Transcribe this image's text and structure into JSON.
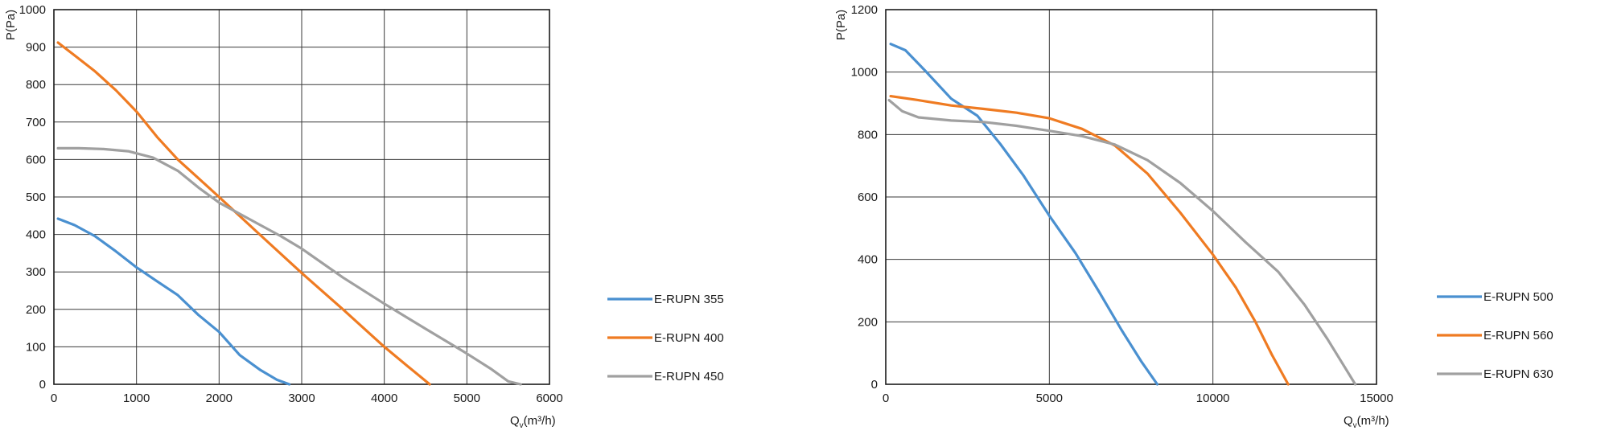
{
  "chart_data": [
    {
      "type": "line",
      "ylabel": "P(Pa)",
      "xlabel_main": "Q",
      "xlabel_sub": "v",
      "xlabel_unit": "(m³/h)",
      "xlim": [
        0,
        6000
      ],
      "ylim": [
        0,
        1000
      ],
      "xticks": [
        0,
        1000,
        2000,
        3000,
        4000,
        5000,
        6000
      ],
      "yticks": [
        0,
        100,
        200,
        300,
        400,
        500,
        600,
        700,
        800,
        900,
        1000
      ],
      "grid": true,
      "legend_position": "right",
      "series": [
        {
          "name": "E-RUPN 355",
          "color": "#4a90d0",
          "points": [
            [
              50,
              442
            ],
            [
              250,
              425
            ],
            [
              500,
              395
            ],
            [
              750,
              355
            ],
            [
              1000,
              312
            ],
            [
              1250,
              275
            ],
            [
              1500,
              238
            ],
            [
              1750,
              185
            ],
            [
              2000,
              140
            ],
            [
              2250,
              78
            ],
            [
              2500,
              38
            ],
            [
              2700,
              12
            ],
            [
              2850,
              0
            ]
          ]
        },
        {
          "name": "E-RUPN 400",
          "color": "#ef7b22",
          "points": [
            [
              50,
              912
            ],
            [
              250,
              878
            ],
            [
              500,
              835
            ],
            [
              750,
              785
            ],
            [
              1000,
              728
            ],
            [
              1250,
              660
            ],
            [
              1500,
              600
            ],
            [
              1750,
              550
            ],
            [
              2000,
              500
            ],
            [
              2500,
              398
            ],
            [
              3000,
              297
            ],
            [
              3500,
              200
            ],
            [
              4000,
              100
            ],
            [
              4300,
              45
            ],
            [
              4550,
              0
            ]
          ]
        },
        {
          "name": "E-RUPN 450",
          "color": "#a0a0a0",
          "points": [
            [
              50,
              630
            ],
            [
              300,
              630
            ],
            [
              600,
              628
            ],
            [
              900,
              622
            ],
            [
              1200,
              605
            ],
            [
              1500,
              570
            ],
            [
              1750,
              525
            ],
            [
              2000,
              485
            ],
            [
              2250,
              455
            ],
            [
              2500,
              425
            ],
            [
              2750,
              395
            ],
            [
              3000,
              362
            ],
            [
              3500,
              285
            ],
            [
              4000,
              215
            ],
            [
              4500,
              148
            ],
            [
              5000,
              82
            ],
            [
              5300,
              40
            ],
            [
              5500,
              8
            ],
            [
              5650,
              0
            ]
          ]
        }
      ]
    },
    {
      "type": "line",
      "ylabel": "P(Pa)",
      "xlabel_main": "Q",
      "xlabel_sub": "v",
      "xlabel_unit": "(m³/h)",
      "xlim": [
        0,
        15000
      ],
      "ylim": [
        0,
        1200
      ],
      "xticks": [
        0,
        5000,
        10000,
        15000
      ],
      "yticks": [
        0,
        200,
        400,
        600,
        800,
        1000,
        1200
      ],
      "grid": true,
      "legend_position": "right",
      "series": [
        {
          "name": "E-RUPN 500",
          "color": "#4a90d0",
          "points": [
            [
              150,
              1090
            ],
            [
              600,
              1070
            ],
            [
              1200,
              1005
            ],
            [
              2000,
              915
            ],
            [
              2800,
              860
            ],
            [
              3500,
              770
            ],
            [
              4200,
              670
            ],
            [
              5000,
              540
            ],
            [
              5800,
              420
            ],
            [
              6500,
              300
            ],
            [
              7200,
              175
            ],
            [
              7800,
              75
            ],
            [
              8300,
              0
            ]
          ]
        },
        {
          "name": "E-RUPN 560",
          "color": "#ef7b22",
          "points": [
            [
              150,
              923
            ],
            [
              1000,
              910
            ],
            [
              2000,
              893
            ],
            [
              3000,
              882
            ],
            [
              4000,
              870
            ],
            [
              5000,
              852
            ],
            [
              6000,
              818
            ],
            [
              7000,
              765
            ],
            [
              8000,
              675
            ],
            [
              9000,
              550
            ],
            [
              10000,
              415
            ],
            [
              10700,
              310
            ],
            [
              11300,
              200
            ],
            [
              11800,
              95
            ],
            [
              12300,
              0
            ]
          ]
        },
        {
          "name": "E-RUPN 630",
          "color": "#a0a0a0",
          "points": [
            [
              100,
              910
            ],
            [
              500,
              875
            ],
            [
              1000,
              855
            ],
            [
              2000,
              845
            ],
            [
              3000,
              840
            ],
            [
              4000,
              828
            ],
            [
              5000,
              812
            ],
            [
              6000,
              795
            ],
            [
              7000,
              768
            ],
            [
              8000,
              718
            ],
            [
              9000,
              645
            ],
            [
              10000,
              555
            ],
            [
              11000,
              455
            ],
            [
              12000,
              360
            ],
            [
              12800,
              255
            ],
            [
              13500,
              145
            ],
            [
              14000,
              60
            ],
            [
              14350,
              0
            ]
          ]
        }
      ]
    }
  ]
}
